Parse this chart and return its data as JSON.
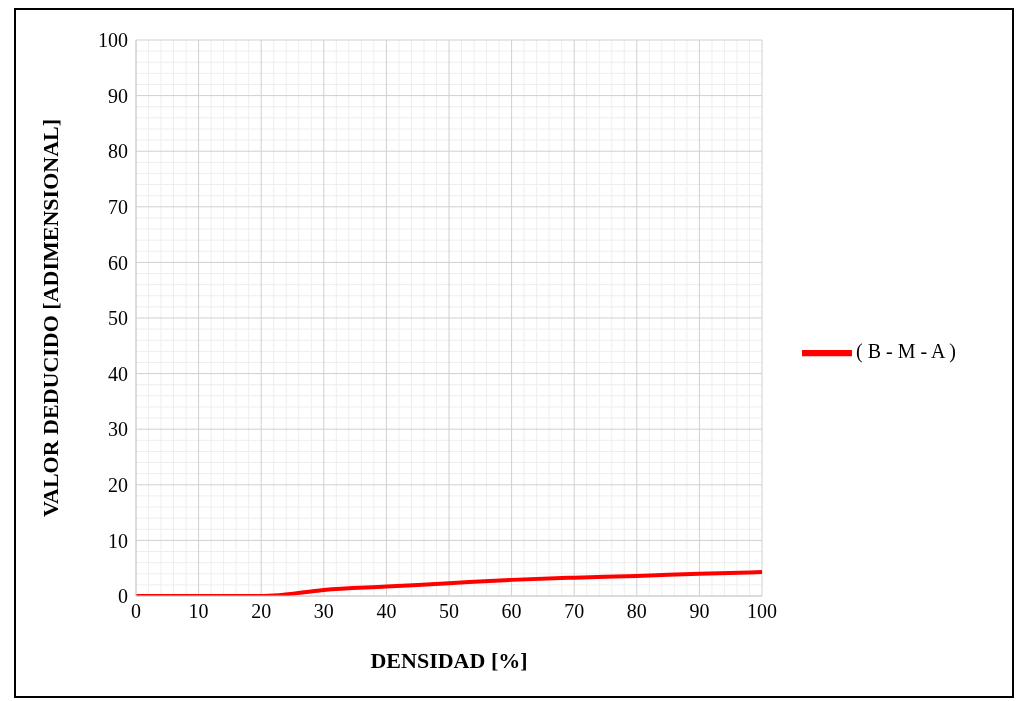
{
  "chart_data": {
    "type": "line",
    "xlabel": "DENSIDAD [%]",
    "ylabel": "VALOR DEDUCIDO [ADIMENSIONAL]",
    "x": [
      0,
      10,
      15,
      19,
      22,
      30,
      40,
      50,
      60,
      70,
      80,
      90,
      100
    ],
    "series": [
      {
        "name": "( B - M - A )",
        "color": "#ff0000",
        "values": [
          0,
          0,
          0,
          0,
          0.1,
          1.1,
          1.7,
          2.3,
          2.9,
          3.3,
          3.6,
          4.0,
          4.3
        ]
      }
    ],
    "xlim": [
      0,
      100
    ],
    "xticks": [
      0,
      10,
      20,
      30,
      40,
      50,
      60,
      70,
      80,
      90,
      100
    ],
    "ylim": [
      0,
      100
    ],
    "yticks": [
      0,
      10,
      20,
      30,
      40,
      50,
      60,
      70,
      80,
      90,
      100
    ],
    "grid": true,
    "legend": "right",
    "marker": "none",
    "line_style": "solid"
  }
}
